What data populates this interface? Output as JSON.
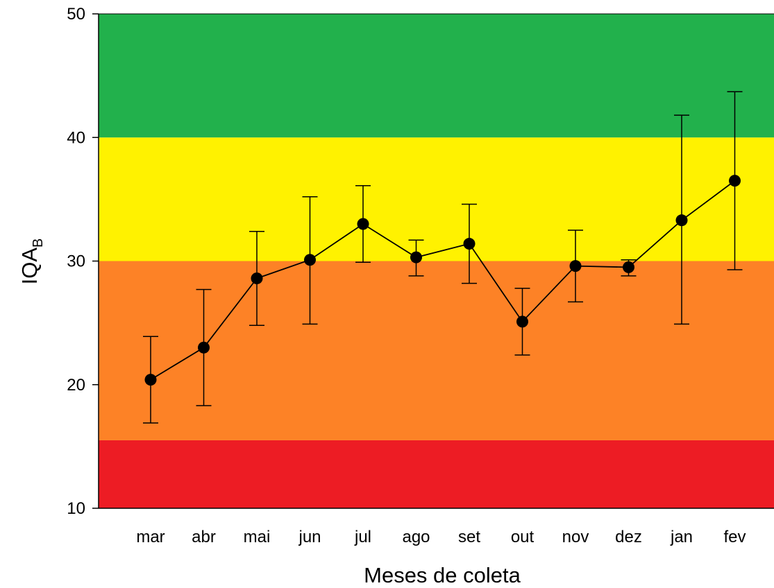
{
  "chart_data": {
    "type": "line",
    "xlabel": "Meses de coleta",
    "ylabel": "IQA",
    "ylabel_subscript": "B",
    "ylim": [
      10,
      50
    ],
    "yticks": [
      10,
      20,
      30,
      40,
      50
    ],
    "categories": [
      "mar",
      "abr",
      "mai",
      "jun",
      "jul",
      "ago",
      "set",
      "out",
      "nov",
      "dez",
      "jan",
      "fev"
    ],
    "series": [
      {
        "values": [
          20.4,
          23.0,
          28.6,
          30.1,
          33.0,
          30.3,
          31.4,
          25.1,
          29.6,
          29.5,
          33.3,
          36.5
        ],
        "err_low": [
          16.9,
          18.3,
          24.8,
          24.9,
          29.9,
          28.8,
          28.2,
          22.4,
          26.7,
          28.8,
          24.9,
          29.3
        ],
        "err_high": [
          23.9,
          27.7,
          32.4,
          35.2,
          36.1,
          31.7,
          34.6,
          27.8,
          32.5,
          30.1,
          41.8,
          43.7
        ],
        "color": "#000000"
      }
    ],
    "bands": [
      {
        "from": 10,
        "to": 15.5,
        "color": "#ed1c24"
      },
      {
        "from": 15.5,
        "to": 30,
        "color": "#fd8226"
      },
      {
        "from": 30,
        "to": 40,
        "color": "#fff200"
      },
      {
        "from": 40,
        "to": 50,
        "color": "#22b14c"
      }
    ],
    "grid": false,
    "legend": "none"
  }
}
